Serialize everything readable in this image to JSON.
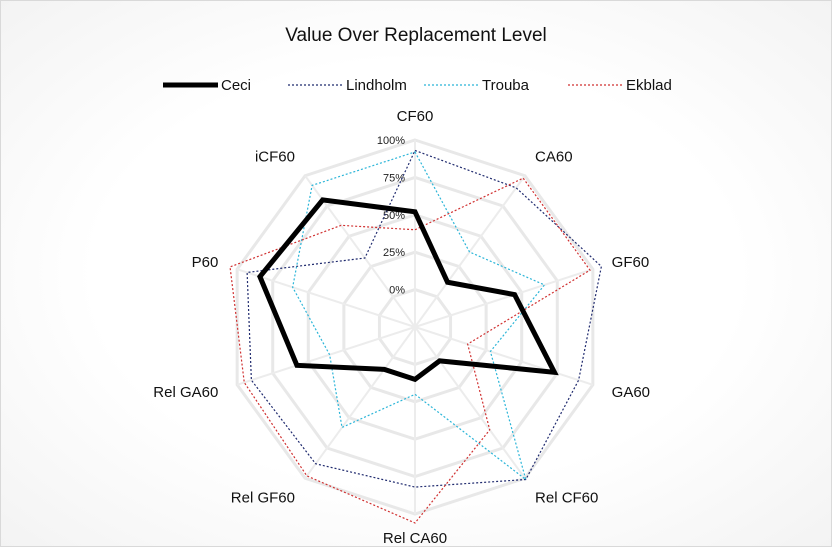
{
  "chart_data": {
    "type": "radar",
    "title": "Value Over Replacement Level",
    "categories": [
      "CF60",
      "CA60",
      "GF60",
      "GA60",
      "Rel CF60",
      "Rel CA60",
      "Rel GF60",
      "Rel GA60",
      "P60",
      "iCF60"
    ],
    "ticks": [
      "0%",
      "25%",
      "50%",
      "75%",
      "100%"
    ],
    "rlim": [
      -0.25,
      1.0
    ],
    "grid": true,
    "legend_position": "top",
    "series": [
      {
        "name": "Ceci",
        "color": "#000000",
        "style": "solid",
        "values": [
          0.52,
          0.12,
          0.45,
          0.73,
          0.03,
          0.1,
          0.1,
          0.58,
          0.84,
          0.8
        ]
      },
      {
        "name": "Lindholm",
        "color": "#1f2a6e",
        "style": "dotted",
        "values": [
          0.93,
          0.9,
          1.06,
          0.9,
          1.01,
          0.82,
          0.88,
          0.9,
          0.93,
          0.32
        ]
      },
      {
        "name": "Trouba",
        "color": "#2bb5d8",
        "style": "dotted",
        "values": [
          0.92,
          0.37,
          0.66,
          0.28,
          1.01,
          0.2,
          0.58,
          0.35,
          0.61,
          0.92
        ]
      },
      {
        "name": "Ekblad",
        "color": "#d03030",
        "style": "dotted",
        "values": [
          0.4,
          0.98,
          0.98,
          0.12,
          0.6,
          1.06,
          0.98,
          0.95,
          1.05,
          0.59
        ]
      }
    ]
  }
}
